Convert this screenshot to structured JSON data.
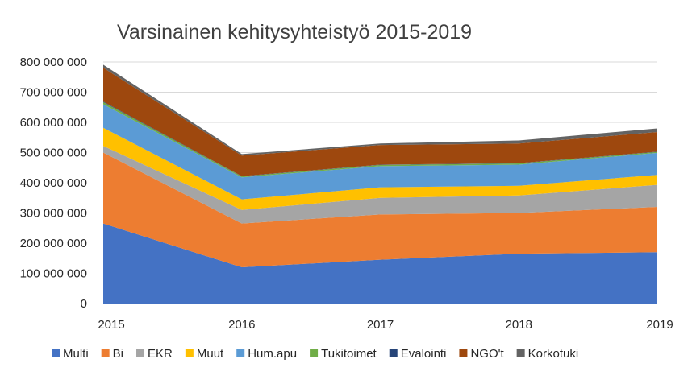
{
  "chart_data": {
    "type": "area",
    "stacked": true,
    "title": "Varsinainen kehitysyhteistyö 2015-2019",
    "xlabel": "",
    "ylabel": "",
    "x": [
      "2015",
      "2016",
      "2017",
      "2018",
      "2019"
    ],
    "ylim": [
      0,
      800000000
    ],
    "yticks": [
      {
        "value": 0,
        "label": "0"
      },
      {
        "value": 100000000,
        "label": "100 000 000"
      },
      {
        "value": 200000000,
        "label": "200 000 000"
      },
      {
        "value": 300000000,
        "label": "300 000 000"
      },
      {
        "value": 400000000,
        "label": "400 000 000"
      },
      {
        "value": 500000000,
        "label": "500 000 000"
      },
      {
        "value": 600000000,
        "label": "600 000 000"
      },
      {
        "value": 700000000,
        "label": "700 000 000"
      },
      {
        "value": 800000000,
        "label": "800 000 000"
      }
    ],
    "grid": true,
    "legend_position": "bottom",
    "series": [
      {
        "name": "Multi",
        "color": "#4472c4",
        "values": [
          265000000,
          120000000,
          145000000,
          165000000,
          170000000
        ]
      },
      {
        "name": "Bi",
        "color": "#ed7d31",
        "values": [
          235000000,
          145000000,
          150000000,
          135000000,
          150000000
        ]
      },
      {
        "name": "EKR",
        "color": "#a5a5a5",
        "values": [
          22000000,
          45000000,
          55000000,
          58000000,
          73000000
        ]
      },
      {
        "name": "Muut",
        "color": "#ffc000",
        "values": [
          60000000,
          35000000,
          35000000,
          32000000,
          33000000
        ]
      },
      {
        "name": "Hum.apu",
        "color": "#5b9bd5",
        "values": [
          78000000,
          73000000,
          70000000,
          70000000,
          73000000
        ]
      },
      {
        "name": "Tukitoimet",
        "color": "#70ad47",
        "values": [
          7000000,
          3000000,
          4000000,
          4000000,
          3000000
        ]
      },
      {
        "name": "Evalointi",
        "color": "#264478",
        "values": [
          2000000,
          1000000,
          1000000,
          1000000,
          1000000
        ]
      },
      {
        "name": "NGO't",
        "color": "#9e480e",
        "values": [
          112000000,
          68000000,
          65000000,
          65000000,
          65000000
        ]
      },
      {
        "name": "Korkotuki",
        "color": "#636363",
        "values": [
          10000000,
          5000000,
          5000000,
          10000000,
          12000000
        ]
      }
    ]
  }
}
